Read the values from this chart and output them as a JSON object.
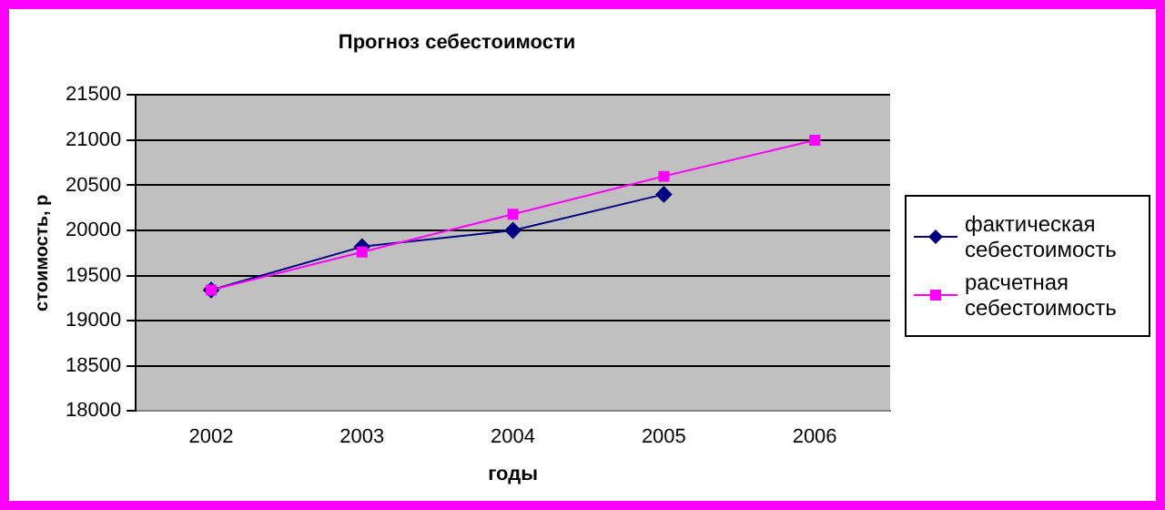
{
  "chart_data": {
    "type": "line",
    "title": "Прогноз себестоимости",
    "xlabel": "годы",
    "ylabel": "стоимость, р",
    "categories": [
      "2002",
      "2003",
      "2004",
      "2005",
      "2006"
    ],
    "series": [
      {
        "name": "фактическая себестоимость",
        "color": "#000080",
        "marker": "diamond",
        "values": [
          19340,
          19820,
          20000,
          20400,
          null
        ]
      },
      {
        "name": "расчетная себестоимость",
        "color": "#ff00ff",
        "marker": "square",
        "values": [
          19340,
          19760,
          20180,
          20600,
          21000
        ]
      }
    ],
    "ylim": [
      18000,
      21500
    ],
    "yticks": [
      18000,
      18500,
      19000,
      19500,
      20000,
      20500,
      21000,
      21500
    ],
    "grid": "y",
    "legend": "right",
    "line_style": "solid"
  }
}
